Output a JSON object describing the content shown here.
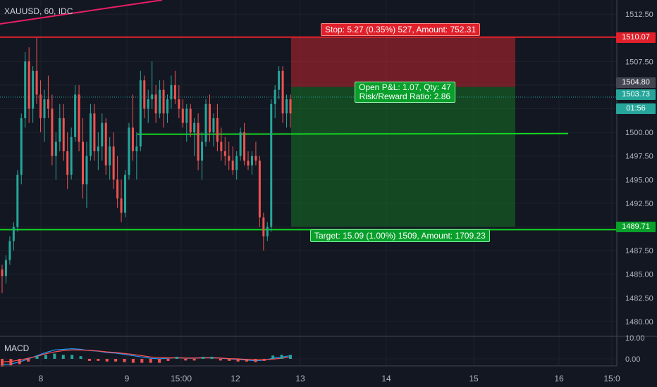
{
  "symbol_title": "XAUUSD, 60, IDC",
  "macd_label": "MACD",
  "colors": {
    "background": "#131722",
    "candle_up": "#26a69a",
    "candle_down": "#ef5350",
    "stop_line": "#e0202a",
    "target_line": "#13d820",
    "trend_line": "#e91e63",
    "macd_line": "#2196f3",
    "signal_line": "#ff5252"
  },
  "position": {
    "stop_label": "Stop: 5.27 (0.35%) 527, Amount: 752.31",
    "target_label": "Target: 15.09 (1.00%) 1509, Amount: 1709.23",
    "open_pl_line1": "Open P&L: 1.07, Qty: 47",
    "open_pl_line2": "Risk/Reward Ratio: 2.86"
  },
  "price_tags": {
    "stop": "1510.07",
    "entry": "1504.80",
    "current": "1503.73",
    "countdown": "01:56",
    "target": "1489.71"
  },
  "chart_data": {
    "type": "candlestick",
    "symbol": "XAUUSD",
    "interval": "60",
    "source": "IDC",
    "ylim": [
      1478.5,
      1514
    ],
    "y_ticks": [
      "1512.50",
      "1510.00",
      "1507.50",
      "1505.00",
      "1502.50",
      "1500.00",
      "1497.50",
      "1495.00",
      "1492.50",
      "1490.00",
      "1487.50",
      "1485.00",
      "1482.50",
      "1480.00"
    ],
    "x_ticks": [
      "8",
      "9",
      "15:00",
      "12",
      "13",
      "14",
      "15",
      "16",
      "15:0"
    ],
    "macd_ticks": [
      "10.00",
      "0.00"
    ],
    "levels": {
      "stop": 1510.07,
      "entry": 1504.8,
      "current": 1503.73,
      "target": 1489.71,
      "support": 1499.8
    },
    "candles": [
      [
        1485.5,
        1486.0,
        1483.0,
        1484.8
      ],
      [
        1484.8,
        1487.0,
        1484.0,
        1486.5
      ],
      [
        1486.5,
        1489.0,
        1486.0,
        1488.5
      ],
      [
        1488.5,
        1490.5,
        1487.5,
        1490.0
      ],
      [
        1490.0,
        1496.0,
        1489.5,
        1495.5
      ],
      [
        1495.5,
        1502.0,
        1494.5,
        1501.5
      ],
      [
        1501.5,
        1508.5,
        1500.5,
        1507.5
      ],
      [
        1507.5,
        1509.0,
        1501.0,
        1502.5
      ],
      [
        1502.5,
        1507.0,
        1501.0,
        1506.5
      ],
      [
        1506.5,
        1510.0,
        1503.0,
        1504.0
      ],
      [
        1504.0,
        1505.5,
        1500.0,
        1501.5
      ],
      [
        1501.5,
        1504.5,
        1499.0,
        1503.5
      ],
      [
        1503.5,
        1506.0,
        1501.5,
        1502.5
      ],
      [
        1502.5,
        1504.0,
        1496.5,
        1497.5
      ],
      [
        1497.5,
        1500.0,
        1495.0,
        1499.0
      ],
      [
        1499.0,
        1503.0,
        1498.0,
        1501.5
      ],
      [
        1501.5,
        1503.0,
        1497.0,
        1498.0
      ],
      [
        1498.0,
        1500.0,
        1494.0,
        1495.5
      ],
      [
        1495.5,
        1500.5,
        1495.0,
        1499.5
      ],
      [
        1499.5,
        1505.0,
        1499.0,
        1504.0
      ],
      [
        1504.0,
        1505.0,
        1498.0,
        1499.0
      ],
      [
        1499.0,
        1501.5,
        1493.0,
        1494.5
      ],
      [
        1494.5,
        1499.0,
        1492.0,
        1497.5
      ],
      [
        1497.5,
        1503.0,
        1497.0,
        1502.0
      ],
      [
        1502.0,
        1503.0,
        1497.0,
        1498.0
      ],
      [
        1498.0,
        1500.0,
        1496.0,
        1498.5
      ],
      [
        1498.5,
        1502.0,
        1497.0,
        1501.0
      ],
      [
        1501.0,
        1501.5,
        1495.5,
        1496.5
      ],
      [
        1496.5,
        1499.5,
        1495.0,
        1498.5
      ],
      [
        1498.5,
        1500.0,
        1494.0,
        1495.0
      ],
      [
        1495.0,
        1497.5,
        1492.0,
        1493.0
      ],
      [
        1493.0,
        1495.0,
        1490.5,
        1491.5
      ],
      [
        1491.5,
        1496.0,
        1491.0,
        1495.5
      ],
      [
        1495.5,
        1501.0,
        1495.0,
        1500.5
      ],
      [
        1500.5,
        1504.0,
        1497.0,
        1498.0
      ],
      [
        1498.0,
        1500.0,
        1495.0,
        1498.5
      ],
      [
        1498.5,
        1506.5,
        1498.0,
        1505.5
      ],
      [
        1505.5,
        1506.0,
        1501.5,
        1502.5
      ],
      [
        1502.5,
        1504.5,
        1501.0,
        1503.5
      ],
      [
        1503.5,
        1507.5,
        1502.5,
        1504.0
      ],
      [
        1504.0,
        1505.0,
        1501.0,
        1502.0
      ],
      [
        1502.0,
        1505.5,
        1501.5,
        1504.5
      ],
      [
        1504.5,
        1505.5,
        1500.5,
        1502.0
      ],
      [
        1502.0,
        1504.0,
        1501.0,
        1503.5
      ],
      [
        1503.5,
        1506.0,
        1502.5,
        1505.0
      ],
      [
        1505.0,
        1506.5,
        1503.0,
        1503.5
      ],
      [
        1503.5,
        1505.0,
        1501.5,
        1502.5
      ],
      [
        1502.5,
        1503.5,
        1500.5,
        1501.0
      ],
      [
        1501.0,
        1503.0,
        1499.0,
        1502.5
      ],
      [
        1502.5,
        1503.0,
        1499.5,
        1500.0
      ],
      [
        1500.0,
        1501.5,
        1497.5,
        1501.0
      ],
      [
        1501.0,
        1502.0,
        1496.0,
        1497.0
      ],
      [
        1497.0,
        1500.0,
        1495.0,
        1499.0
      ],
      [
        1499.0,
        1503.5,
        1498.5,
        1503.0
      ],
      [
        1503.0,
        1504.0,
        1499.0,
        1500.0
      ],
      [
        1500.0,
        1502.0,
        1498.5,
        1501.5
      ],
      [
        1501.5,
        1503.0,
        1498.0,
        1499.0
      ],
      [
        1499.0,
        1500.5,
        1497.0,
        1498.0
      ],
      [
        1498.0,
        1499.5,
        1496.5,
        1497.5
      ],
      [
        1497.5,
        1499.0,
        1496.0,
        1497.0
      ],
      [
        1497.0,
        1498.5,
        1495.5,
        1496.0
      ],
      [
        1496.0,
        1498.0,
        1495.0,
        1497.5
      ],
      [
        1497.5,
        1500.5,
        1497.0,
        1500.0
      ],
      [
        1500.0,
        1501.0,
        1496.5,
        1497.0
      ],
      [
        1497.0,
        1498.0,
        1496.0,
        1496.5
      ],
      [
        1496.5,
        1498.0,
        1495.5,
        1497.5
      ],
      [
        1497.5,
        1499.0,
        1496.5,
        1497.0
      ],
      [
        1497.0,
        1497.5,
        1490.0,
        1491.0
      ],
      [
        1491.0,
        1491.5,
        1487.5,
        1489.0
      ],
      [
        1489.0,
        1490.5,
        1488.5,
        1490.0
      ],
      [
        1490.0,
        1503.5,
        1489.5,
        1503.0
      ],
      [
        1503.0,
        1505.0,
        1501.5,
        1504.5
      ],
      [
        1504.5,
        1507.0,
        1503.5,
        1506.5
      ],
      [
        1506.5,
        1507.0,
        1501.0,
        1502.0
      ],
      [
        1502.0,
        1504.0,
        1500.5,
        1503.5
      ],
      [
        1503.5,
        1504.0,
        1500.5,
        1502.0
      ]
    ],
    "macd": {
      "macd_line": [
        -1.0,
        -0.8,
        -0.5,
        0.0,
        0.5,
        1.0,
        1.4,
        1.5,
        1.6,
        1.5,
        1.3,
        1.2,
        1.0,
        0.9,
        0.7,
        0.5,
        0.3,
        0.1,
        0.0,
        0.1,
        0.2,
        0.1,
        0.1,
        0.2,
        0.2,
        0.1,
        0.0,
        -0.1,
        -0.2,
        -0.3,
        -0.2,
        0.1,
        0.3,
        0.5
      ],
      "signal_line": [
        -0.5,
        -0.4,
        -0.2,
        0.1,
        0.4,
        0.8,
        1.1,
        1.3,
        1.4,
        1.4,
        1.35,
        1.25,
        1.1,
        1.0,
        0.85,
        0.7,
        0.5,
        0.3,
        0.2,
        0.15,
        0.15,
        0.12,
        0.12,
        0.15,
        0.15,
        0.12,
        0.05,
        0.0,
        -0.1,
        -0.15,
        -0.15,
        -0.05,
        0.1,
        0.3
      ]
    }
  }
}
